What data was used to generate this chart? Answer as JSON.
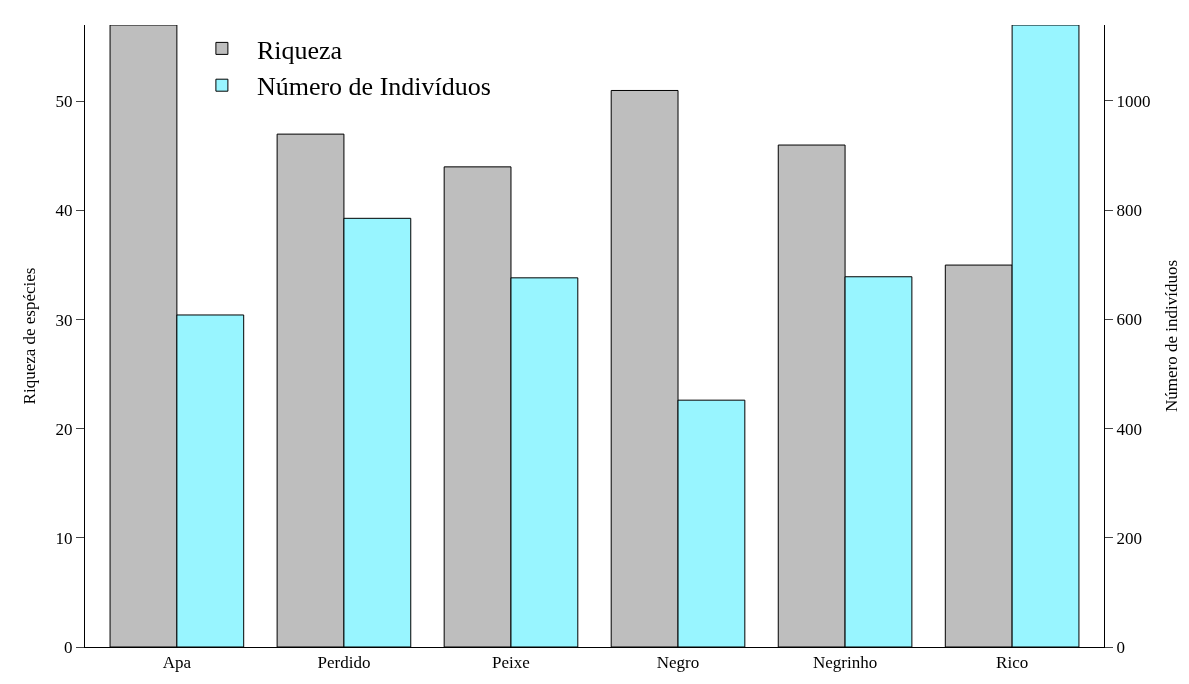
{
  "chart_data": {
    "type": "bar",
    "categories": [
      "Apa",
      "Perdido",
      "Peixe",
      "Negro",
      "Negrinho",
      "Rico"
    ],
    "series": [
      {
        "name": "Riqueza",
        "color": "#bebebe",
        "values": [
          57,
          47,
          44,
          51,
          46,
          35
        ]
      },
      {
        "name": "Número de Indivíduos",
        "color": "#98f5ff",
        "axis": "y2",
        "values": [
          608,
          785,
          676,
          452,
          678,
          1139
        ]
      }
    ],
    "ylabel": "Riqueza de espécies",
    "y2label": "Número de indivíduos",
    "ylim": [
      0,
      57
    ],
    "yticks": [
      0,
      10,
      20,
      30,
      40,
      50
    ],
    "y2lim": [
      0,
      1139
    ],
    "y2ticks": [
      0,
      200,
      400,
      600,
      800,
      1000
    ],
    "legend": "top left"
  }
}
